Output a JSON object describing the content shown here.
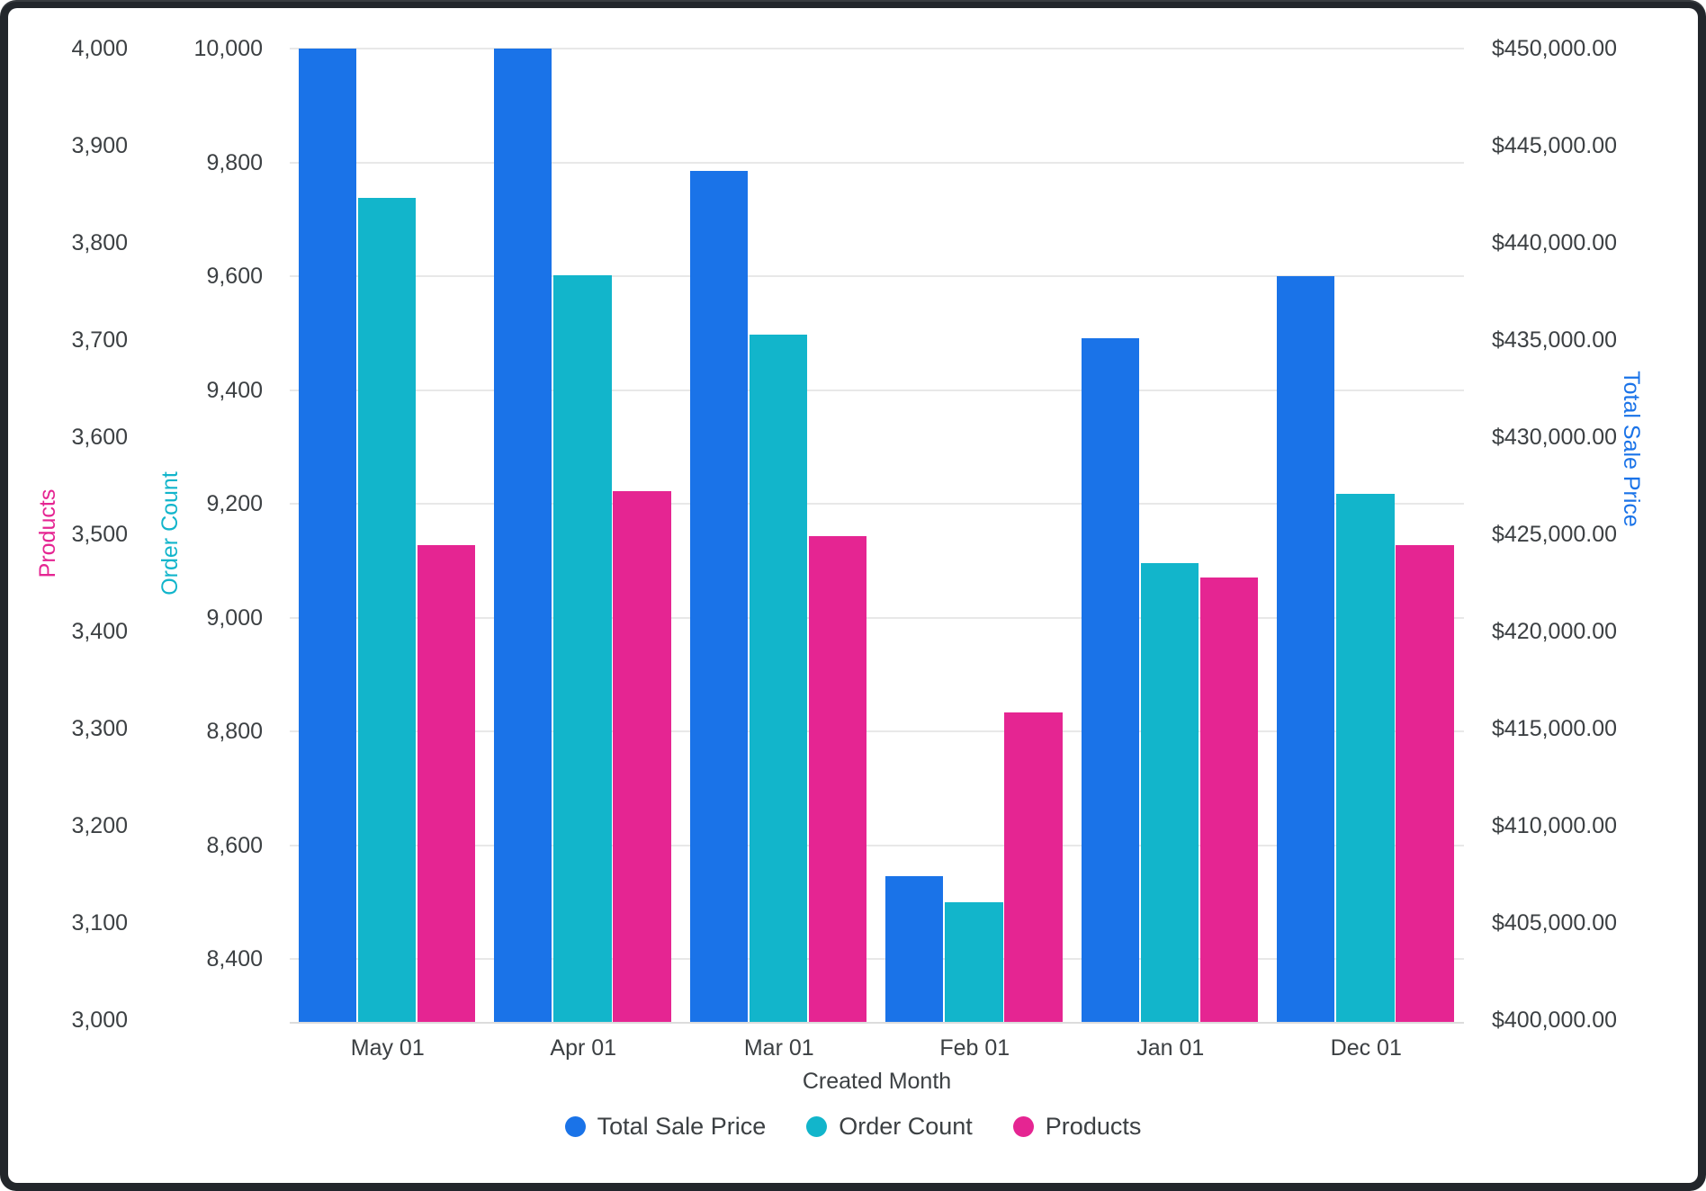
{
  "chart_data": {
    "type": "bar",
    "title": "",
    "categories": [
      "May 01",
      "Apr 01",
      "Mar 01",
      "Feb 01",
      "Jan 01",
      "Dec 01"
    ],
    "xlabel": "Created Month",
    "series": [
      {
        "name": "Total Sale Price",
        "axis": "price",
        "color": "#1A73E8",
        "values": [
          450000,
          450000,
          443700,
          407400,
          435100,
          438300
        ]
      },
      {
        "name": "Order Count",
        "axis": "order_count",
        "color": "#12B5CB",
        "values": [
          9738,
          9602,
          9497,
          8500,
          9096,
          9218
        ]
      },
      {
        "name": "Products",
        "axis": "products",
        "color": "#E52592",
        "values": [
          3489,
          3544,
          3498,
          3317,
          3456,
          3489
        ]
      }
    ],
    "axes": {
      "products": {
        "label": "Products",
        "color": "#E52592",
        "min": 3000,
        "max": 4000,
        "ticks": [
          4000,
          3900,
          3800,
          3700,
          3600,
          3500,
          3400,
          3300,
          3200,
          3100,
          3000
        ]
      },
      "order_count": {
        "label": "Order Count",
        "color": "#12B5CB",
        "max": 10000,
        "ticks": [
          10000,
          9800,
          9600,
          9400,
          9200,
          9000,
          8800,
          8600,
          8400
        ]
      },
      "price": {
        "label": "Total Sale Price",
        "color": "#1A73E8",
        "min": 400000,
        "max": 450000,
        "format": "currency",
        "ticks": [
          450000,
          445000,
          440000,
          435000,
          430000,
          425000,
          420000,
          415000,
          410000,
          405000,
          400000
        ]
      }
    },
    "legend": {
      "position": "bottom",
      "items": [
        "Total Sale Price",
        "Order Count",
        "Products"
      ]
    },
    "grid": true,
    "grid_color": "#e8e8e8"
  }
}
